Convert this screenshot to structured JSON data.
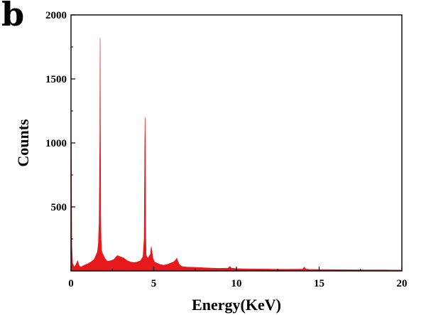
{
  "panel_label": "b",
  "chart_data": {
    "type": "area",
    "xlabel": "Energy(KeV)",
    "ylabel": "Counts",
    "xlim": [
      0,
      20
    ],
    "ylim": [
      0,
      2000
    ],
    "x_ticks": [
      0,
      5,
      10,
      15,
      20
    ],
    "x_tick_labels": [
      "0",
      "5",
      "10",
      "15",
      "20"
    ],
    "y_ticks": [
      500,
      1000,
      1500,
      2000
    ],
    "y_tick_labels": [
      "500",
      "1000",
      "1500",
      "2000"
    ],
    "grid": false,
    "color": "#e8191c",
    "series": [
      {
        "x": [
          0.0,
          0.02,
          0.05,
          0.1,
          0.2,
          0.3,
          0.4,
          0.5,
          0.6,
          0.8,
          1.0,
          1.2,
          1.4,
          1.5,
          1.6,
          1.65,
          1.7,
          1.74,
          1.76,
          1.78,
          1.8,
          1.82,
          1.85,
          1.9,
          2.0,
          2.1,
          2.2,
          2.4,
          2.6,
          2.8,
          3.0,
          3.2,
          3.4,
          3.6,
          3.8,
          4.0,
          4.2,
          4.35,
          4.42,
          4.46,
          4.48,
          4.5,
          4.52,
          4.54,
          4.6,
          4.7,
          4.8,
          4.85,
          4.9,
          4.95,
          5.05,
          5.2,
          5.4,
          5.6,
          5.8,
          6.0,
          6.2,
          6.35,
          6.4,
          6.45,
          6.55,
          6.7,
          7.0,
          7.5,
          8.0,
          8.5,
          9.0,
          9.5,
          9.6,
          9.7,
          10.0,
          11.0,
          12.0,
          13.0,
          14.0,
          14.1,
          14.2,
          14.4,
          15.0,
          16.0,
          17.0,
          18.0,
          19.0,
          20.0
        ],
        "y": [
          0,
          1000,
          200,
          60,
          30,
          50,
          80,
          40,
          30,
          45,
          55,
          70,
          90,
          120,
          150,
          210,
          380,
          1000,
          1820,
          1100,
          400,
          250,
          160,
          140,
          110,
          90,
          75,
          80,
          90,
          120,
          110,
          100,
          80,
          70,
          65,
          70,
          80,
          110,
          250,
          1000,
          1200,
          900,
          280,
          130,
          100,
          110,
          130,
          190,
          150,
          100,
          70,
          60,
          50,
          45,
          50,
          60,
          70,
          90,
          100,
          80,
          50,
          35,
          30,
          28,
          25,
          22,
          20,
          22,
          35,
          22,
          18,
          15,
          14,
          13,
          14,
          30,
          15,
          12,
          11,
          10,
          9,
          8,
          8,
          7
        ]
      }
    ]
  }
}
